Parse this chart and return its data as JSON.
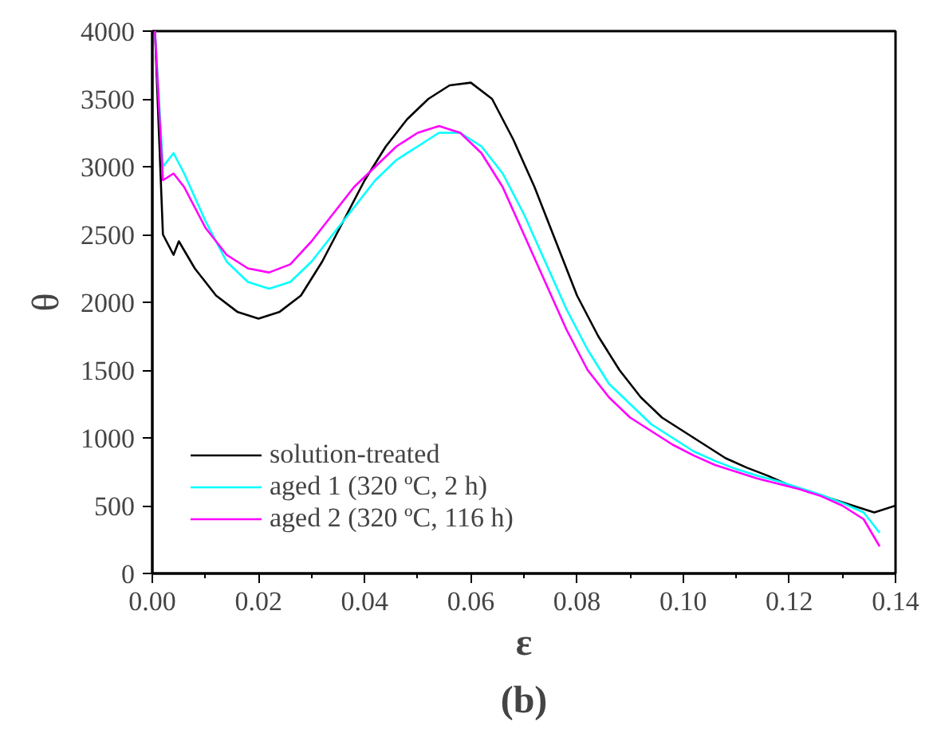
{
  "chart_data": {
    "type": "line",
    "xlabel": "ε",
    "ylabel": "θ",
    "annotations": [
      "(b)"
    ],
    "xlim": [
      0,
      0.14
    ],
    "ylim": [
      0,
      4000
    ],
    "xticks": [
      {
        "value": 0,
        "label": "0.00"
      },
      {
        "value": 0.02,
        "label": "0.02"
      },
      {
        "value": 0.04,
        "label": "0.04"
      },
      {
        "value": 0.06,
        "label": "0.06"
      },
      {
        "value": 0.08,
        "label": "0.08"
      },
      {
        "value": 0.1,
        "label": "0.10"
      },
      {
        "value": 0.12,
        "label": "0.12"
      },
      {
        "value": 0.14,
        "label": "0.14"
      }
    ],
    "yticks": [
      0,
      500,
      1000,
      1500,
      2000,
      2500,
      3000,
      3500,
      4000
    ],
    "grid": false,
    "legend": "bottom left",
    "marker": "none",
    "line_style": "solid",
    "series": [
      {
        "name": "solution-treated",
        "color": "#000000",
        "x": [
          0.0005,
          0.002,
          0.004,
          0.005,
          0.008,
          0.012,
          0.016,
          0.02,
          0.024,
          0.028,
          0.032,
          0.036,
          0.04,
          0.044,
          0.048,
          0.052,
          0.056,
          0.06,
          0.064,
          0.068,
          0.072,
          0.076,
          0.08,
          0.084,
          0.088,
          0.092,
          0.096,
          0.1,
          0.104,
          0.108,
          0.112,
          0.116,
          0.12,
          0.124,
          0.128,
          0.132,
          0.136,
          0.14
        ],
        "values": [
          4000,
          2500,
          2350,
          2450,
          2250,
          2050,
          1930,
          1880,
          1930,
          2050,
          2300,
          2600,
          2900,
          3150,
          3350,
          3500,
          3600,
          3620,
          3500,
          3200,
          2850,
          2450,
          2050,
          1750,
          1500,
          1300,
          1150,
          1050,
          950,
          850,
          780,
          720,
          650,
          600,
          550,
          500,
          450,
          500
        ]
      },
      {
        "name": "aged 1 (320 ºC, 2 h)",
        "color": "#00ffff",
        "x": [
          0.0005,
          0.002,
          0.004,
          0.006,
          0.01,
          0.014,
          0.018,
          0.022,
          0.026,
          0.03,
          0.034,
          0.038,
          0.042,
          0.046,
          0.05,
          0.054,
          0.058,
          0.062,
          0.066,
          0.07,
          0.074,
          0.078,
          0.082,
          0.086,
          0.09,
          0.094,
          0.098,
          0.102,
          0.106,
          0.11,
          0.114,
          0.118,
          0.122,
          0.126,
          0.13,
          0.134,
          0.137
        ],
        "values": [
          4000,
          3000,
          3100,
          2950,
          2600,
          2300,
          2150,
          2100,
          2150,
          2300,
          2500,
          2700,
          2900,
          3050,
          3150,
          3250,
          3250,
          3150,
          2950,
          2650,
          2300,
          1950,
          1650,
          1400,
          1250,
          1100,
          1000,
          900,
          830,
          770,
          720,
          680,
          630,
          580,
          520,
          450,
          300
        ]
      },
      {
        "name": "aged 2 (320 ºC, 116 h)",
        "color": "#ff00ff",
        "x": [
          0.0005,
          0.002,
          0.004,
          0.006,
          0.01,
          0.014,
          0.018,
          0.022,
          0.026,
          0.03,
          0.034,
          0.038,
          0.042,
          0.046,
          0.05,
          0.054,
          0.058,
          0.062,
          0.066,
          0.07,
          0.074,
          0.078,
          0.082,
          0.086,
          0.09,
          0.094,
          0.098,
          0.102,
          0.106,
          0.11,
          0.114,
          0.118,
          0.122,
          0.126,
          0.13,
          0.134,
          0.137
        ],
        "values": [
          4000,
          2900,
          2950,
          2850,
          2550,
          2350,
          2250,
          2220,
          2280,
          2450,
          2650,
          2850,
          3000,
          3150,
          3250,
          3300,
          3250,
          3100,
          2850,
          2500,
          2150,
          1800,
          1500,
          1300,
          1150,
          1050,
          950,
          870,
          800,
          750,
          700,
          660,
          620,
          570,
          500,
          400,
          200
        ]
      }
    ]
  }
}
